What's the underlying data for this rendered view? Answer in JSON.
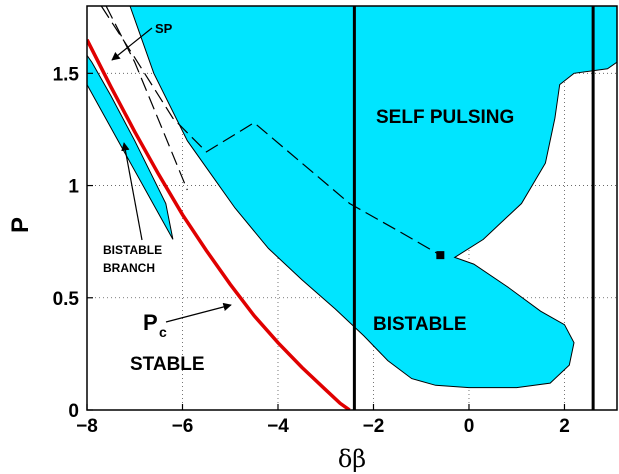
{
  "chart_data": {
    "type": "area",
    "xlabel": "δβ",
    "ylabel": "P",
    "xlim": [
      -8,
      3.1
    ],
    "ylim": [
      0,
      1.8
    ],
    "xticks": [
      "−8",
      "−6",
      "−4",
      "−2",
      "0",
      "2"
    ],
    "xtick_values": [
      -8,
      -6,
      -4,
      -2,
      0,
      2
    ],
    "yticks": [
      "0",
      "0.5",
      "1",
      "1.5"
    ],
    "ytick_values": [
      0,
      0.5,
      1,
      1.5
    ],
    "grid": true,
    "fill_color": "#00e5ff",
    "main_region": [
      [
        -7.1,
        1.8
      ],
      [
        -6.6,
        1.5
      ],
      [
        -5.9,
        1.2
      ],
      [
        -5.4,
        1.05
      ],
      [
        -4.9,
        0.9
      ],
      [
        -4.2,
        0.72
      ],
      [
        -3.5,
        0.58
      ],
      [
        -2.8,
        0.45
      ],
      [
        -2.2,
        0.33
      ],
      [
        -1.7,
        0.22
      ],
      [
        -1.2,
        0.14
      ],
      [
        -0.7,
        0.11
      ],
      [
        0,
        0.1
      ],
      [
        1,
        0.1
      ],
      [
        1.7,
        0.12
      ],
      [
        2.1,
        0.2
      ],
      [
        2.2,
        0.3
      ],
      [
        2.0,
        0.38
      ],
      [
        1.5,
        0.44
      ],
      [
        0.8,
        0.55
      ],
      [
        0.1,
        0.65
      ],
      [
        -0.3,
        0.68
      ],
      [
        0.3,
        0.76
      ],
      [
        1.1,
        0.92
      ],
      [
        1.6,
        1.1
      ],
      [
        1.8,
        1.3
      ],
      [
        1.9,
        1.45
      ],
      [
        2.2,
        1.5
      ],
      [
        2.9,
        1.52
      ],
      [
        3.1,
        1.55
      ],
      [
        3.1,
        1.8
      ]
    ],
    "bistable_branch_region": [
      [
        -8,
        1.45
      ],
      [
        -7.4,
        1.22
      ],
      [
        -6.2,
        0.76
      ],
      [
        -6.35,
        0.92
      ],
      [
        -7.0,
        1.2
      ],
      [
        -7.5,
        1.4
      ],
      [
        -7.9,
        1.55
      ],
      [
        -8,
        1.58
      ]
    ],
    "pc_curve": [
      [
        -8,
        1.65
      ],
      [
        -7.5,
        1.44
      ],
      [
        -7,
        1.24
      ],
      [
        -6.5,
        1.05
      ],
      [
        -6,
        0.87
      ],
      [
        -5.5,
        0.71
      ],
      [
        -5,
        0.56
      ],
      [
        -4.5,
        0.42
      ],
      [
        -4,
        0.3
      ],
      [
        -3.5,
        0.19
      ],
      [
        -3,
        0.09
      ],
      [
        -2.7,
        0.03
      ],
      [
        -2.5,
        0
      ]
    ],
    "dashed_curve": [
      [
        -7.7,
        1.8
      ],
      [
        -7.0,
        1.57
      ],
      [
        -6.2,
        1.3
      ],
      [
        -5.5,
        1.15
      ],
      [
        -4.5,
        1.28
      ],
      [
        -3.5,
        1.1
      ],
      [
        -2.5,
        0.92
      ],
      [
        -1.5,
        0.8
      ],
      [
        -0.6,
        0.69
      ]
    ],
    "sp_curve": [
      [
        -7.6,
        1.8
      ],
      [
        -7.0,
        1.55
      ],
      [
        -6.4,
        1.24
      ],
      [
        -5.9,
        0.98
      ]
    ],
    "vertical_lines": [
      -2.4,
      2.6
    ],
    "marker_point": [
      -0.6,
      0.69
    ],
    "annotations": {
      "self_pulsing": "SELF PULSING",
      "bistable": "BISTABLE",
      "stable": "STABLE",
      "sp": "SP",
      "bistable_branch_1": "BISTABLE",
      "bistable_branch_2": "BRANCH",
      "pc": "P",
      "pc_sub": "c"
    }
  }
}
